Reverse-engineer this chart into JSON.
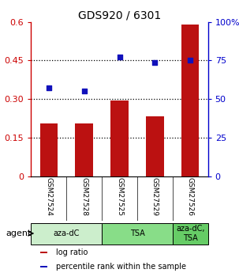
{
  "title": "GDS920 / 6301",
  "samples": [
    "GSM27524",
    "GSM27528",
    "GSM27525",
    "GSM27529",
    "GSM27526"
  ],
  "log_ratio": [
    0.205,
    0.205,
    0.293,
    0.233,
    0.591
  ],
  "percentile_rank": [
    57.0,
    55.0,
    77.0,
    73.5,
    75.0
  ],
  "bar_color": "#bb1111",
  "dot_color": "#1111bb",
  "left_ylim": [
    0,
    0.6
  ],
  "right_ylim": [
    0,
    100
  ],
  "left_yticks": [
    0,
    0.15,
    0.3,
    0.45,
    0.6
  ],
  "right_yticks": [
    0,
    25,
    50,
    75,
    100
  ],
  "right_yticklabels": [
    "0",
    "25",
    "50",
    "75",
    "100%"
  ],
  "left_yticklabels": [
    "0",
    "0.15",
    "0.30",
    "0.45",
    "0.6"
  ],
  "hlines": [
    0.15,
    0.3,
    0.45
  ],
  "groups": [
    {
      "label": "aza-dC",
      "start": 0,
      "end": 2,
      "color": "#cceecc"
    },
    {
      "label": "TSA",
      "start": 2,
      "end": 4,
      "color": "#88dd88"
    },
    {
      "label": "aza-dC,\nTSA",
      "start": 4,
      "end": 5,
      "color": "#66cc66"
    }
  ],
  "agent_label": "agent",
  "legend_items": [
    {
      "color": "#bb1111",
      "label": "log ratio"
    },
    {
      "color": "#1111bb",
      "label": "percentile rank within the sample"
    }
  ],
  "background_color": "#ffffff",
  "tick_label_bg": "#cccccc"
}
